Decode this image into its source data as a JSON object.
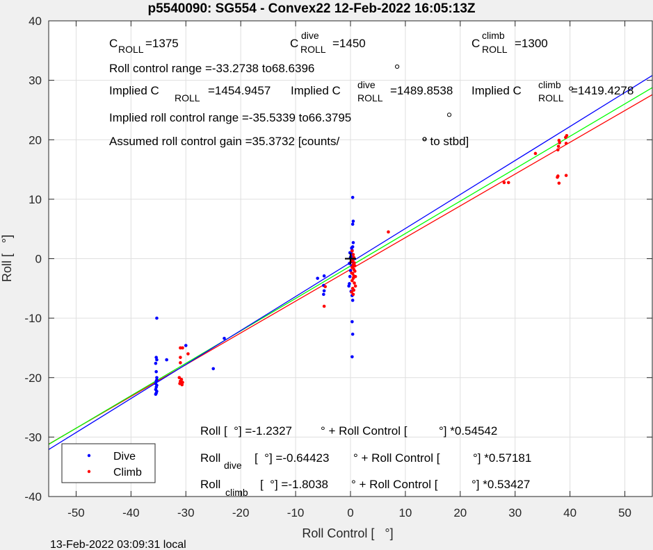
{
  "chart_data": {
    "type": "scatter",
    "title": "p5540090: SG554 - Convex22 12-Feb-2022 16:05:13Z",
    "xlabel": "Roll Control [   °]",
    "ylabel": "Roll [   °]",
    "xlim": [
      -55,
      55
    ],
    "ylim": [
      -40,
      40
    ],
    "xticks": [
      -50,
      -40,
      -30,
      -20,
      -10,
      0,
      10,
      20,
      30,
      40,
      50
    ],
    "yticks": [
      -40,
      -30,
      -20,
      -10,
      0,
      10,
      20,
      30,
      40
    ],
    "grid": true,
    "legend_position": "bottom-left",
    "footer": "13-Feb-2022 03:09:31 local",
    "series": [
      {
        "name": "Dive",
        "color": "#0000ff",
        "points": [
          [
            -35.3,
            -10.0
          ],
          [
            -35.4,
            -16.6
          ],
          [
            -35.3,
            -17.0
          ],
          [
            -35.5,
            -17.6
          ],
          [
            -35.4,
            -19.0
          ],
          [
            -35.3,
            -20.0
          ],
          [
            -35.4,
            -20.6
          ],
          [
            -35.5,
            -21.0
          ],
          [
            -35.3,
            -21.3
          ],
          [
            -35.4,
            -21.6
          ],
          [
            -35.5,
            -22.0
          ],
          [
            -35.3,
            -22.3
          ],
          [
            -35.4,
            -22.6
          ],
          [
            -35.5,
            -22.8
          ],
          [
            -35.3,
            -20.4
          ],
          [
            -33.5,
            -17.0
          ],
          [
            -30.0,
            -14.6
          ],
          [
            -25.0,
            -18.5
          ],
          [
            -23.0,
            -13.4
          ],
          [
            -6.0,
            -3.3
          ],
          [
            -4.8,
            -2.9
          ],
          [
            -4.9,
            -4.5
          ],
          [
            -4.8,
            -5.4
          ],
          [
            -4.9,
            -6.0
          ],
          [
            0.4,
            10.3
          ],
          [
            0.5,
            6.3
          ],
          [
            0.4,
            5.8
          ],
          [
            0.5,
            2.7
          ],
          [
            0.4,
            2.0
          ],
          [
            0.3,
            1.4
          ],
          [
            0.2,
            0.8
          ],
          [
            0.1,
            0.4
          ],
          [
            0.3,
            -0.5
          ],
          [
            0.2,
            -1.2
          ],
          [
            0.0,
            -2.0
          ],
          [
            -0.1,
            -3.0
          ],
          [
            -0.2,
            -4.2
          ],
          [
            -0.3,
            -4.6
          ],
          [
            0.1,
            -5.5
          ],
          [
            0.3,
            -6.2
          ],
          [
            0.4,
            -7.0
          ],
          [
            0.3,
            -10.6
          ],
          [
            0.4,
            -12.7
          ],
          [
            0.3,
            -16.5
          ],
          [
            -0.1,
            1.0
          ],
          [
            0.2,
            1.8
          ],
          [
            -0.2,
            -0.8
          ],
          [
            0.0,
            0.2
          ]
        ]
      },
      {
        "name": "Climb",
        "color": "#ff0000",
        "points": [
          [
            -31.0,
            -15.0
          ],
          [
            -30.6,
            -15.0
          ],
          [
            -29.6,
            -16.0
          ],
          [
            -31.0,
            -16.6
          ],
          [
            -31.0,
            -17.5
          ],
          [
            -31.2,
            -20.0
          ],
          [
            -30.8,
            -20.3
          ],
          [
            -31.0,
            -20.6
          ],
          [
            -30.6,
            -20.8
          ],
          [
            -31.1,
            -21.0
          ],
          [
            -30.7,
            -21.2
          ],
          [
            -4.8,
            -8.0
          ],
          [
            -4.6,
            -4.7
          ],
          [
            6.9,
            4.5
          ],
          [
            0.3,
            1.3
          ],
          [
            0.5,
            0.7
          ],
          [
            0.6,
            0.2
          ],
          [
            0.4,
            -0.3
          ],
          [
            0.7,
            -0.7
          ],
          [
            0.5,
            -1.0
          ],
          [
            0.3,
            -1.4
          ],
          [
            0.6,
            -1.8
          ],
          [
            0.8,
            -2.1
          ],
          [
            0.4,
            -2.5
          ],
          [
            0.6,
            -2.9
          ],
          [
            0.5,
            -3.3
          ],
          [
            0.3,
            -3.7
          ],
          [
            0.7,
            -4.1
          ],
          [
            0.9,
            -4.6
          ],
          [
            0.4,
            -5.0
          ],
          [
            0.6,
            -5.3
          ],
          [
            0.2,
            -5.6
          ],
          [
            0.5,
            -6.0
          ],
          [
            0.1,
            -0.5
          ],
          [
            0.8,
            -1.2
          ],
          [
            0.2,
            -2.4
          ],
          [
            0.9,
            -3.0
          ],
          [
            28.0,
            12.8
          ],
          [
            28.8,
            12.8
          ],
          [
            33.7,
            17.7
          ],
          [
            37.8,
            18.3
          ],
          [
            37.9,
            18.9
          ],
          [
            38.1,
            19.5
          ],
          [
            38.0,
            19.9
          ],
          [
            39.2,
            20.4
          ],
          [
            39.4,
            20.7
          ],
          [
            39.3,
            19.4
          ],
          [
            37.7,
            13.7
          ],
          [
            37.8,
            13.9
          ],
          [
            38.0,
            12.7
          ],
          [
            39.3,
            14.0
          ]
        ]
      }
    ],
    "fit_lines": [
      {
        "name": "Roll fit",
        "color": "#00ff00",
        "intercept": -1.2327,
        "slope": 0.54542
      },
      {
        "name": "Dive fit",
        "color": "#0000ff",
        "intercept": -0.64423,
        "slope": 0.57181
      },
      {
        "name": "Climb fit",
        "color": "#ff0000",
        "intercept": -1.8038,
        "slope": 0.53427
      }
    ],
    "center_marker": [
      0,
      0
    ],
    "extra_markers": [
      [
        8.5,
        32.3
      ],
      [
        18.0,
        24.2
      ],
      [
        13.5,
        20.1
      ],
      [
        40.2,
        28.6
      ]
    ],
    "annotations": {
      "c_roll": {
        "symbol": "C",
        "sub": "ROLL",
        "value": "=1375"
      },
      "c_roll_dive": {
        "symbol": "C",
        "sup": "dive",
        "sub": "ROLL",
        "value": "=1450"
      },
      "c_roll_climb": {
        "symbol": "C",
        "sup": "climb",
        "sub": "ROLL",
        "value": "=1300"
      },
      "roll_control_range": "Roll control range =-33.2738 to68.6396",
      "implied_prefix": "Implied C",
      "implied_roll_sub": "ROLL",
      "implied_roll_value": "=1454.9457",
      "implied_dive_sup": "dive",
      "implied_dive_sub": "ROLL",
      "implied_dive_value": "=1489.8538",
      "implied_climb_sup": "climb",
      "implied_climb_sub": "ROLL",
      "implied_climb_value": "=1419.4278",
      "implied_range": "Implied roll control range =-35.5339 to66.3795",
      "gain_text": "Assumed roll control gain =35.3732 [counts/",
      "gain_suffix": "° to stbd]",
      "eq_roll_a": "Roll [  °] =-1.2327",
      "eq_roll_b": "° + Roll Control [",
      "eq_roll_c": "°] *0.54542",
      "eq_dive_label": "Roll",
      "eq_dive_sub": "dive",
      "eq_dive_a": "[  °] =-0.64423",
      "eq_dive_b": "° + Roll Control [",
      "eq_dive_c": "°] *0.57181",
      "eq_climb_label": "Roll",
      "eq_climb_sub": "climb",
      "eq_climb_a": "[  °] =-1.8038",
      "eq_climb_b": "° + Roll Control [",
      "eq_climb_c": "°] *0.53427"
    }
  }
}
